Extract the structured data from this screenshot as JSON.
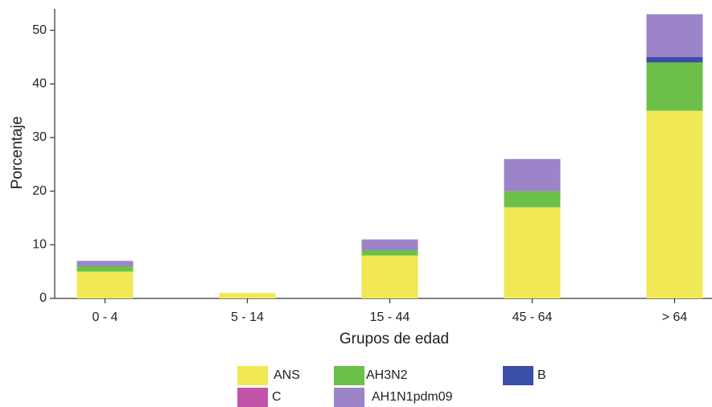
{
  "chart_data": {
    "type": "stacked_bar",
    "y_label": "Porcentaje",
    "x_label": "Grupos de edad",
    "categories": [
      "0 - 4",
      "5 - 14",
      "15 - 44",
      "45 - 64",
      "> 64"
    ],
    "series": [
      {
        "name": "ANS",
        "color": "#f0e854",
        "values": [
          5,
          1,
          8,
          17,
          35
        ]
      },
      {
        "name": "AH3N2",
        "color": "#6cc04a",
        "values": [
          1,
          0,
          1,
          3,
          9
        ]
      },
      {
        "name": "B",
        "color": "#3a4fa8",
        "values": [
          0,
          0,
          0,
          0,
          1
        ]
      },
      {
        "name": "C",
        "color": "#c055a8",
        "values": [
          0,
          0,
          0,
          0,
          0
        ]
      },
      {
        "name": "AH1N1pdm09",
        "color": "#9b84c8",
        "values": [
          1,
          0,
          2,
          6,
          8
        ]
      }
    ],
    "ylim": [
      0,
      54
    ],
    "yticks": [
      0,
      10,
      20,
      30,
      40,
      50
    ]
  }
}
